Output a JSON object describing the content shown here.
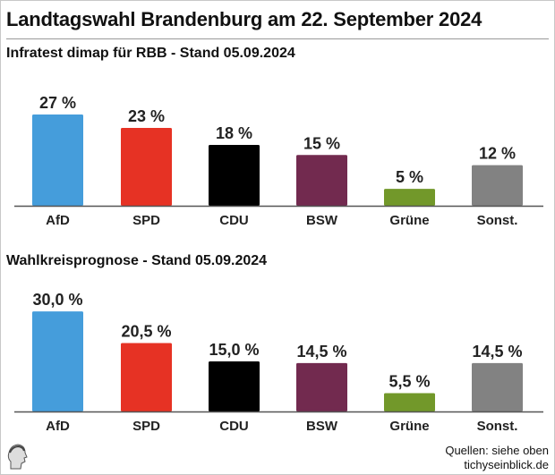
{
  "title": "Landtagswahl Brandenburg am 22. September 2024",
  "colors": {
    "AfD": "#459ddb",
    "SPD": "#e63224",
    "CDU": "#000000",
    "BSW": "#722a4f",
    "Grüne": "#72982a",
    "Sonst.": "#828282"
  },
  "chart_data": [
    {
      "type": "bar",
      "title": "Infratest dimap für RBB - Stand 05.09.2024",
      "categories": [
        "AfD",
        "SPD",
        "CDU",
        "BSW",
        "Grüne",
        "Sonst."
      ],
      "values": [
        27,
        23,
        18,
        15,
        5,
        12
      ],
      "labels": [
        "27 %",
        "23 %",
        "18 %",
        "15 %",
        "5 %",
        "12 %"
      ],
      "grid": false
    },
    {
      "type": "bar",
      "title": "Wahlkreisprognose - Stand 05.09.2024",
      "categories": [
        "AfD",
        "SPD",
        "CDU",
        "BSW",
        "Grüne",
        "Sonst."
      ],
      "values": [
        30.0,
        20.5,
        15.0,
        14.5,
        5.5,
        14.5
      ],
      "labels": [
        "30,0 %",
        "20,5 %",
        "15,0 %",
        "14,5 %",
        "5,5 %",
        "14,5 %"
      ],
      "grid": false
    }
  ],
  "footer": {
    "source": "Quellen: siehe oben",
    "site": "tichyseinblick.de",
    "logo": "tichys-einblick-head-logo"
  }
}
